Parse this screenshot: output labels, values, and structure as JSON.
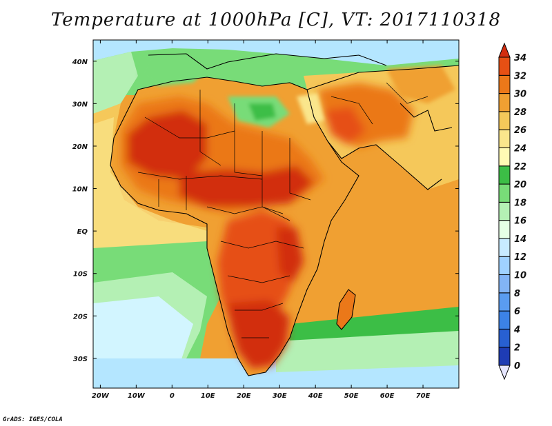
{
  "title": "Temperature at 1000hPa [C], VT: 2017110318",
  "credit": "GrADS: IGES/COLA",
  "colors": {
    "ocean_deep": "#b4e6ff",
    "ocean_mid": "#d2f5ff",
    "green": "#3cbe46",
    "light_green": "#78dc78",
    "pale_green": "#b4f0b4",
    "yellow": "#fae68c",
    "light_orange": "#f5c85a",
    "orange": "#f0a032",
    "dark_orange": "#eb7819",
    "red_orange": "#e65014",
    "red": "#d22d0f",
    "border": "#000000"
  },
  "map": {
    "lon_labels": [
      "20W",
      "10W",
      "0",
      "10E",
      "20E",
      "30E",
      "40E",
      "50E",
      "60E",
      "70E"
    ],
    "lat_labels": [
      "40N",
      "30N",
      "20N",
      "10N",
      "EQ",
      "10S",
      "20S",
      "30S"
    ],
    "lon_range": [
      -22,
      80
    ],
    "lat_range": [
      -37,
      45
    ]
  },
  "colorbar": {
    "levels": [
      0,
      2,
      4,
      6,
      8,
      10,
      12,
      14,
      16,
      18,
      20,
      22,
      24,
      26,
      28,
      30,
      32,
      34
    ],
    "labels": [
      "0",
      "2",
      "4",
      "6",
      "8",
      "10",
      "12",
      "14",
      "16",
      "18",
      "20",
      "22",
      "24",
      "26",
      "28",
      "30",
      "32",
      "34"
    ],
    "colors": [
      "#0a1470",
      "#1e3cb4",
      "#2860d2",
      "#3c82e6",
      "#5a9cf0",
      "#82b4f5",
      "#a0d2ff",
      "#c8ebff",
      "#e6ffe6",
      "#b4f0b4",
      "#78dc78",
      "#3cbe46",
      "#fffab4",
      "#fae68c",
      "#f5c85a",
      "#f0a032",
      "#eb7819",
      "#e65014",
      "#d22d0f"
    ]
  }
}
